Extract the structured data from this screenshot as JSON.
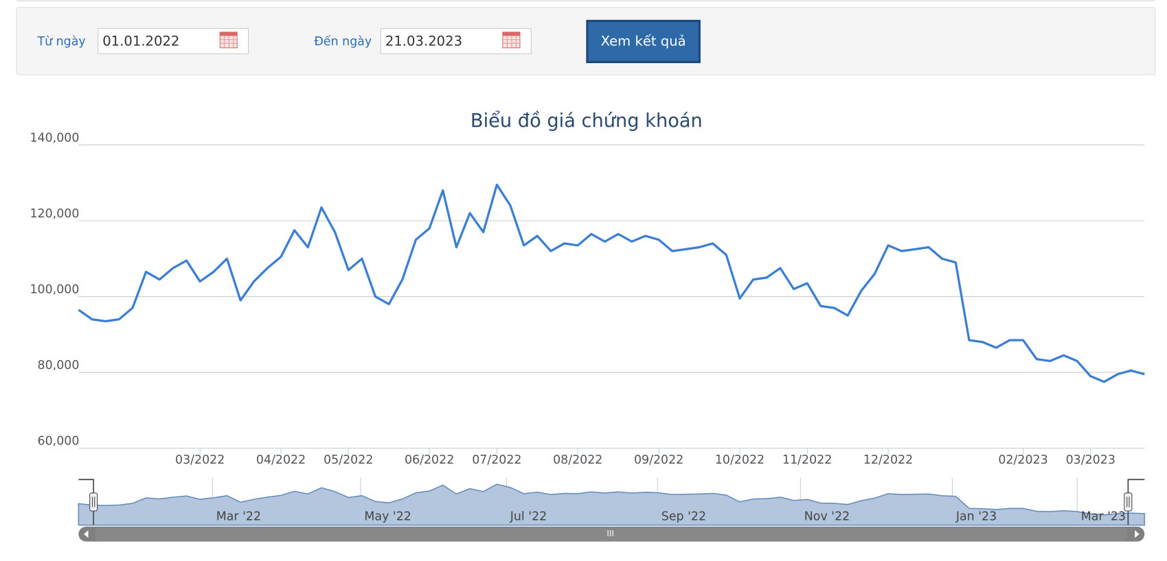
{
  "form": {
    "from_label": "Từ ngày",
    "from_value": "01.01.2022",
    "to_label": "Đến ngày",
    "to_value": "21.03.2023",
    "button": "Xem kết quả"
  },
  "chart_data": {
    "type": "line",
    "title": "Biểu đồ giá chứng khoán",
    "categories": [
      null,
      null,
      null,
      null,
      null,
      null,
      null,
      null,
      null,
      "03/2022",
      null,
      null,
      null,
      null,
      null,
      "04/2022",
      null,
      null,
      null,
      null,
      "05/2022",
      null,
      null,
      null,
      null,
      null,
      "06/2022",
      null,
      null,
      null,
      null,
      "07/2022",
      null,
      null,
      null,
      null,
      null,
      "08/2022",
      null,
      null,
      null,
      null,
      null,
      "09/2022",
      null,
      null,
      null,
      null,
      null,
      "10/2022",
      null,
      null,
      null,
      null,
      "11/2022",
      null,
      null,
      null,
      null,
      null,
      "12/2022",
      null,
      null,
      null,
      null,
      null,
      null,
      null,
      null,
      null,
      "02/2023",
      null,
      null,
      null,
      null,
      "03/2023",
      null,
      null,
      null,
      null
    ],
    "values": [
      96500,
      94000,
      93500,
      94000,
      97000,
      106500,
      104500,
      107500,
      109500,
      104000,
      106500,
      110000,
      99000,
      104000,
      107500,
      110500,
      117500,
      113000,
      123500,
      117000,
      107000,
      110000,
      100000,
      98000,
      104500,
      115000,
      118000,
      128000,
      113000,
      122000,
      117000,
      129500,
      124000,
      113500,
      116000,
      112000,
      114000,
      113500,
      116500,
      114500,
      116500,
      114500,
      116000,
      115000,
      112000,
      112500,
      113000,
      114000,
      111000,
      99500,
      104500,
      105000,
      107500,
      102000,
      103500,
      97500,
      97000,
      95000,
      101500,
      106000,
      113500,
      112000,
      112500,
      113000,
      110000,
      109000,
      88500,
      88000,
      86500,
      88500,
      88500,
      83500,
      83000,
      84500,
      83000,
      79000,
      77500,
      79500,
      80500,
      79500
    ],
    "color": "#3a7fd5",
    "ylim": [
      60000,
      140000
    ],
    "yticks": [
      {
        "value": 60000,
        "label": "60,000"
      },
      {
        "value": 80000,
        "label": "80,000"
      },
      {
        "value": 100000,
        "label": "100,000"
      },
      {
        "value": 120000,
        "label": "120,000"
      },
      {
        "value": 140000,
        "label": "140,000"
      }
    ],
    "grid": true,
    "navigator": {
      "labels": [
        "Mar '22",
        "May '22",
        "Jul '22",
        "Sep '22",
        "Nov '22",
        "Jan '23",
        "Mar '23"
      ],
      "scrollbar": "III"
    }
  }
}
